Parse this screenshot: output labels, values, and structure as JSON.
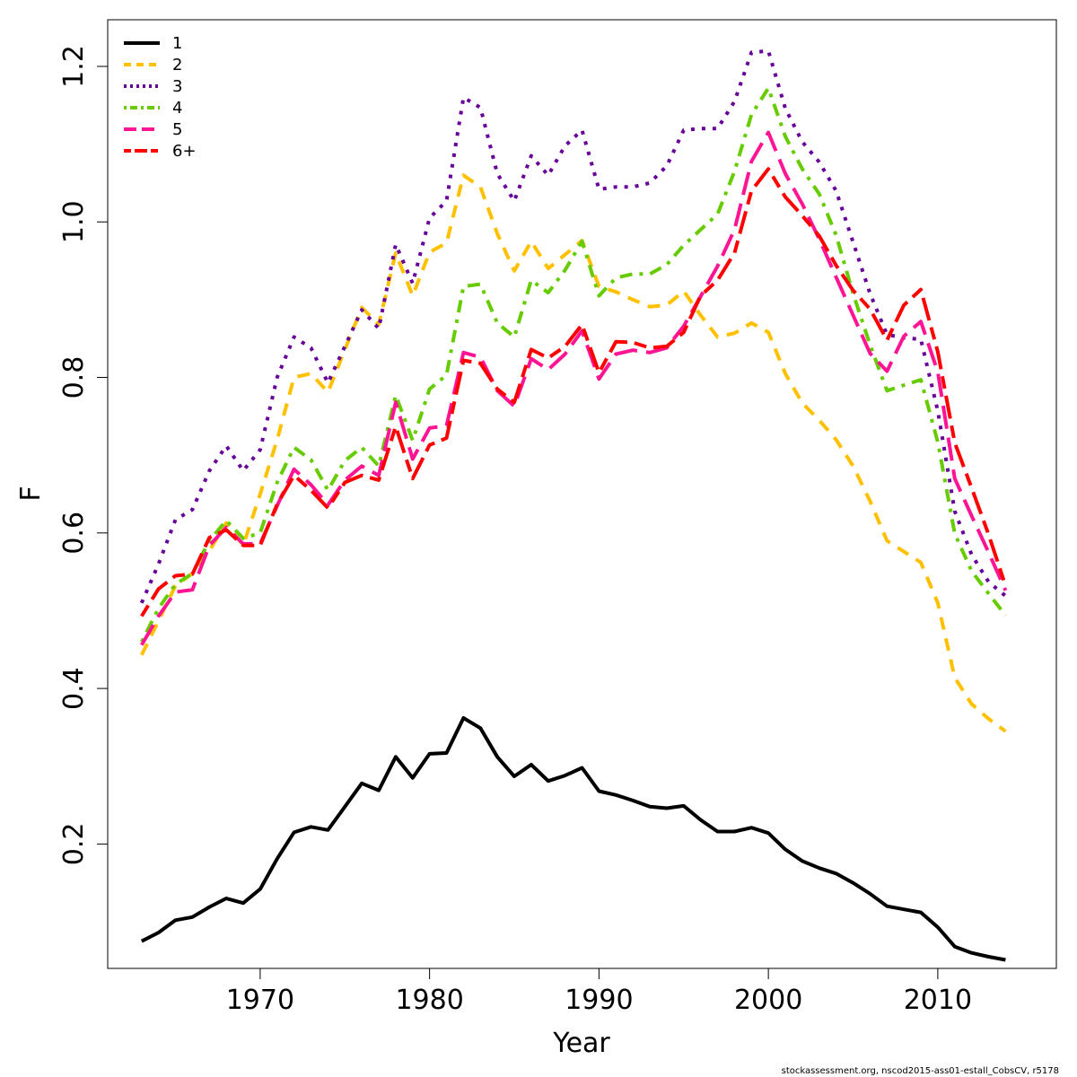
{
  "chart_data": {
    "type": "line",
    "xlabel": "Year",
    "ylabel": "F",
    "xlim": [
      1961,
      2017
    ],
    "ylim": [
      0.04,
      1.26
    ],
    "x_ticks": [
      1970,
      1980,
      1990,
      2000,
      2010
    ],
    "y_ticks": [
      0.2,
      0.4,
      0.6,
      0.8,
      1.0,
      1.2
    ],
    "y_tick_labels": [
      "0.2",
      "0.4",
      "0.6",
      "0.8",
      "1.0",
      "1.2"
    ],
    "x_tick_labels": [
      "1970",
      "1980",
      "1990",
      "2000",
      "2010"
    ],
    "grid": false,
    "legend_position": "top-left",
    "x": [
      1963,
      1964,
      1965,
      1966,
      1967,
      1968,
      1969,
      1970,
      1971,
      1972,
      1973,
      1974,
      1975,
      1976,
      1977,
      1978,
      1979,
      1980,
      1981,
      1982,
      1983,
      1984,
      1985,
      1986,
      1987,
      1988,
      1989,
      1990,
      1991,
      1992,
      1993,
      1994,
      1995,
      1996,
      1997,
      1998,
      1999,
      2000,
      2001,
      2002,
      2003,
      2004,
      2005,
      2006,
      2007,
      2008,
      2009,
      2010,
      2011,
      2012,
      2013,
      2014
    ],
    "series": [
      {
        "name": "1",
        "color": "#000000",
        "dash": "solid",
        "values": [
          0.075,
          0.086,
          0.102,
          0.106,
          0.119,
          0.13,
          0.124,
          0.142,
          0.181,
          0.215,
          0.222,
          0.218,
          0.248,
          0.278,
          0.269,
          0.312,
          0.285,
          0.316,
          0.317,
          0.362,
          0.349,
          0.312,
          0.287,
          0.302,
          0.281,
          0.288,
          0.298,
          0.268,
          0.263,
          0.256,
          0.248,
          0.246,
          0.249,
          0.231,
          0.216,
          0.216,
          0.221,
          0.214,
          0.193,
          0.178,
          0.169,
          0.162,
          0.15,
          0.136,
          0.12,
          0.116,
          0.112,
          0.093,
          0.068,
          0.06,
          0.055,
          0.051
        ]
      },
      {
        "name": "2",
        "color": "#ffc000",
        "dash": "dashed",
        "values": [
          0.443,
          0.487,
          0.532,
          0.548,
          0.577,
          0.613,
          0.584,
          0.65,
          0.72,
          0.8,
          0.805,
          0.781,
          0.836,
          0.89,
          0.868,
          0.96,
          0.905,
          0.961,
          0.973,
          1.06,
          1.045,
          0.985,
          0.937,
          0.975,
          0.94,
          0.958,
          0.976,
          0.917,
          0.91,
          0.9,
          0.891,
          0.893,
          0.911,
          0.88,
          0.852,
          0.857,
          0.87,
          0.858,
          0.805,
          0.767,
          0.745,
          0.72,
          0.686,
          0.641,
          0.59,
          0.576,
          0.562,
          0.51,
          0.414,
          0.38,
          0.361,
          0.345
        ]
      },
      {
        "name": "3",
        "color": "#660099",
        "dash": "dotted",
        "values": [
          0.51,
          0.56,
          0.617,
          0.63,
          0.68,
          0.712,
          0.68,
          0.707,
          0.8,
          0.852,
          0.838,
          0.793,
          0.84,
          0.887,
          0.863,
          0.971,
          0.921,
          1.005,
          1.027,
          1.16,
          1.147,
          1.062,
          1.027,
          1.085,
          1.06,
          1.098,
          1.118,
          1.042,
          1.045,
          1.045,
          1.05,
          1.072,
          1.118,
          1.12,
          1.12,
          1.155,
          1.218,
          1.22,
          1.146,
          1.103,
          1.077,
          1.04,
          0.974,
          0.908,
          0.855,
          0.851,
          0.849,
          0.757,
          0.628,
          0.572,
          0.537,
          0.519
        ]
      },
      {
        "name": "4",
        "color": "#66cc00",
        "dash": "dotdash",
        "values": [
          0.46,
          0.503,
          0.534,
          0.548,
          0.59,
          0.616,
          0.593,
          0.6,
          0.665,
          0.71,
          0.694,
          0.655,
          0.693,
          0.71,
          0.686,
          0.777,
          0.719,
          0.785,
          0.803,
          0.917,
          0.92,
          0.87,
          0.852,
          0.925,
          0.909,
          0.938,
          0.975,
          0.905,
          0.928,
          0.933,
          0.933,
          0.945,
          0.97,
          0.99,
          1.01,
          1.065,
          1.138,
          1.172,
          1.11,
          1.068,
          1.036,
          0.983,
          0.908,
          0.842,
          0.783,
          0.79,
          0.797,
          0.717,
          0.599,
          0.551,
          0.522,
          0.494
        ]
      },
      {
        "name": "5",
        "color": "#ff1493",
        "dash": "longdash",
        "values": [
          0.456,
          0.493,
          0.524,
          0.527,
          0.584,
          0.607,
          0.586,
          0.586,
          0.635,
          0.682,
          0.662,
          0.636,
          0.668,
          0.686,
          0.674,
          0.768,
          0.695,
          0.735,
          0.738,
          0.832,
          0.826,
          0.783,
          0.763,
          0.824,
          0.81,
          0.83,
          0.86,
          0.798,
          0.83,
          0.835,
          0.832,
          0.838,
          0.866,
          0.904,
          0.943,
          0.99,
          1.078,
          1.115,
          1.062,
          1.023,
          0.978,
          0.929,
          0.88,
          0.831,
          0.808,
          0.853,
          0.872,
          0.807,
          0.67,
          0.622,
          0.575,
          0.526
        ]
      },
      {
        "name": "6+",
        "color": "#ff0000",
        "dash": "twodash",
        "values": [
          0.493,
          0.528,
          0.545,
          0.547,
          0.594,
          0.604,
          0.584,
          0.584,
          0.637,
          0.674,
          0.655,
          0.632,
          0.665,
          0.674,
          0.668,
          0.737,
          0.67,
          0.713,
          0.722,
          0.822,
          0.818,
          0.785,
          0.768,
          0.836,
          0.825,
          0.84,
          0.868,
          0.806,
          0.846,
          0.845,
          0.838,
          0.84,
          0.858,
          0.905,
          0.925,
          0.96,
          1.04,
          1.068,
          1.032,
          1.008,
          0.982,
          0.944,
          0.912,
          0.888,
          0.848,
          0.893,
          0.913,
          0.833,
          0.716,
          0.658,
          0.598,
          0.532
        ]
      }
    ]
  },
  "footer": "stockassessment.org, nscod2015-ass01-estall_CobsCV, r5178"
}
